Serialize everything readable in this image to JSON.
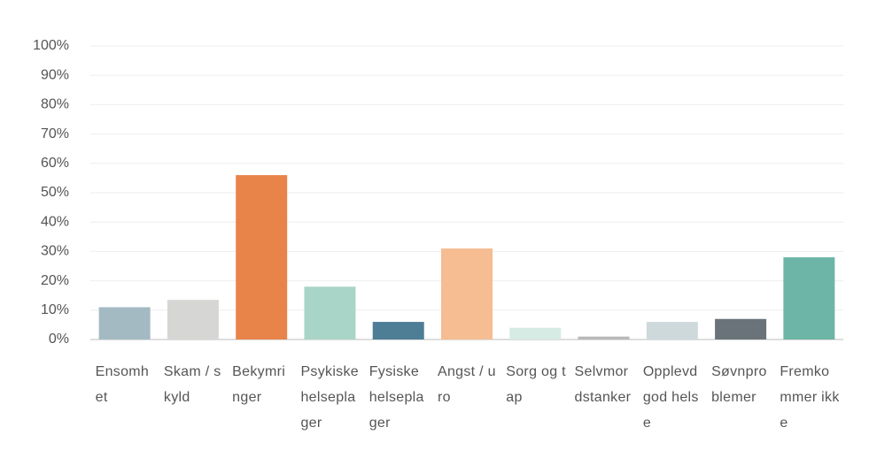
{
  "chart_data": {
    "type": "bar",
    "categories": [
      "Ensomhet",
      "Skam / skyld",
      "Bekymringer",
      "Psykiske helseplager",
      "Fysiske helseplager",
      "Angst / uro",
      "Sorg og tap",
      "Selvmordstanker",
      "Opplevd god helse",
      "Søvnproblemer",
      "Fremkommer ikke"
    ],
    "values": [
      11,
      13.5,
      56,
      18,
      6,
      31,
      4,
      1,
      6,
      7,
      28
    ],
    "colors": [
      "#a3bac3",
      "#d6d7d4",
      "#e8834a",
      "#a9d5c8",
      "#4e7d96",
      "#f5bd91",
      "#d6ebe4",
      "#b9b9b9",
      "#ced9dc",
      "#6a7379",
      "#6db5a6"
    ],
    "ylim": [
      0,
      100
    ],
    "yticks": [
      {
        "value": 0,
        "label": "0%"
      },
      {
        "value": 10,
        "label": "10%"
      },
      {
        "value": 20,
        "label": "20%"
      },
      {
        "value": 30,
        "label": "30%"
      },
      {
        "value": 40,
        "label": "40%"
      },
      {
        "value": 50,
        "label": "50%"
      },
      {
        "value": 60,
        "label": "60%"
      },
      {
        "value": 70,
        "label": "70%"
      },
      {
        "value": 80,
        "label": "80%"
      },
      {
        "value": 90,
        "label": "90%"
      },
      {
        "value": 100,
        "label": "100%"
      }
    ],
    "grid": true
  }
}
